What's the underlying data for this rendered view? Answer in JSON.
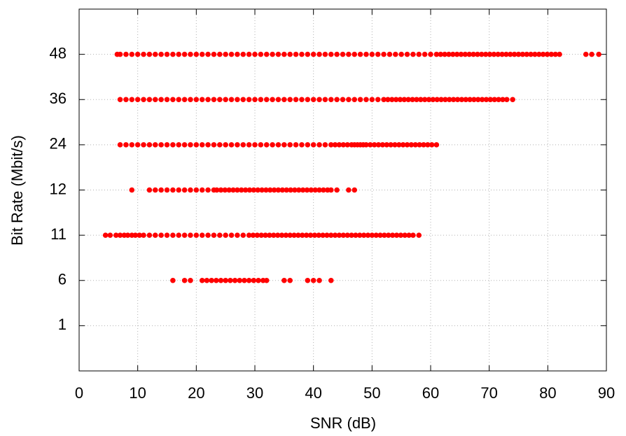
{
  "chart_data": {
    "type": "scatter",
    "x_label": "SNR (dB)",
    "y_label": "Bit Rate (Mbit/s)",
    "xlim": [
      0,
      90
    ],
    "xticks": [
      0,
      10,
      20,
      30,
      40,
      50,
      60,
      70,
      80,
      90
    ],
    "yticks": [
      1,
      6,
      11,
      12,
      24,
      36,
      48
    ],
    "grid": true,
    "color": "#ff0000",
    "series": [
      {
        "y": 48,
        "x": [
          6.5,
          7,
          8,
          9,
          10,
          11,
          12,
          13,
          14,
          15,
          16,
          17,
          18,
          19,
          20,
          21,
          22,
          23,
          24,
          25,
          26,
          27,
          28,
          29,
          30,
          31,
          32,
          33,
          34,
          35,
          36,
          37,
          38,
          39,
          40,
          41,
          42,
          43,
          44,
          45,
          46,
          47,
          48,
          49,
          50,
          51,
          52,
          53,
          54,
          55,
          56,
          57,
          58,
          59,
          60,
          61,
          61.7,
          62.4,
          63.1,
          63.8,
          64.5,
          65.2,
          65.9,
          66.6,
          67.3,
          68,
          68.7,
          69.4,
          70.1,
          70.8,
          71.5,
          72.2,
          72.9,
          73.6,
          74.3,
          75,
          75.7,
          76.4,
          77.1,
          77.8,
          78.5,
          79.2,
          79.9,
          80.6,
          81.3,
          82,
          86.5,
          87.5,
          88.7
        ]
      },
      {
        "y": 36,
        "x": [
          7,
          8,
          9,
          10,
          11,
          12,
          13,
          14,
          15,
          16,
          17,
          18,
          19,
          20,
          21,
          22,
          23,
          24,
          25,
          26,
          27,
          28,
          29,
          30,
          31,
          32,
          33,
          34,
          35,
          36,
          37,
          38,
          39,
          40,
          41,
          42,
          43,
          44,
          45,
          46,
          47,
          48,
          49,
          50,
          51,
          52,
          52.7,
          53.4,
          54.1,
          54.8,
          55.5,
          56.2,
          56.9,
          57.6,
          58.3,
          59,
          59.7,
          60.4,
          61.1,
          61.8,
          62.5,
          63.2,
          63.9,
          64.6,
          65.3,
          66,
          66.7,
          67.4,
          68.1,
          68.8,
          69.5,
          70.2,
          70.9,
          71.6,
          72.3,
          73,
          74
        ]
      },
      {
        "y": 24,
        "x": [
          7,
          8,
          9,
          10,
          11,
          12,
          13,
          14,
          15,
          16,
          17,
          18,
          19,
          20,
          21,
          22,
          23,
          24,
          25,
          26,
          27,
          28,
          29,
          30,
          31,
          32,
          33,
          34,
          35,
          36,
          37,
          38,
          39,
          40,
          41,
          42,
          43,
          43.7,
          44.4,
          45.1,
          45.8,
          46.5,
          47,
          47.5,
          48,
          48.5,
          49,
          49.7,
          50.4,
          51.1,
          51.8,
          52.5,
          53.2,
          53.9,
          54.6,
          55.3,
          56,
          56.7,
          57.4,
          58.1,
          58.8,
          59.5,
          60.2,
          61
        ]
      },
      {
        "y": 12,
        "x": [
          9,
          12,
          13,
          14,
          15,
          16,
          17,
          18,
          19,
          20,
          21,
          22,
          23,
          23.5,
          24.2,
          24.9,
          25.6,
          26.3,
          27,
          27.7,
          28.4,
          29.1,
          29.8,
          30.5,
          31.2,
          31.9,
          32.6,
          33.3,
          34,
          34.7,
          35.4,
          36.1,
          36.8,
          37.5,
          38.2,
          38.9,
          39.6,
          40.3,
          41,
          41.7,
          42.4,
          43,
          44,
          46,
          47
        ]
      },
      {
        "y": 11,
        "x": [
          4.5,
          5.3,
          6.3,
          7,
          7.7,
          8.3,
          9,
          9.6,
          10.3,
          11,
          12,
          13,
          14,
          15,
          16,
          17,
          18,
          19,
          20,
          21,
          22,
          23,
          24,
          25,
          26,
          27,
          28,
          29,
          29.7,
          30.4,
          31.1,
          31.8,
          32.5,
          33.2,
          33.9,
          34.6,
          35.3,
          36,
          36.7,
          37.4,
          38.1,
          38.8,
          39.5,
          40.2,
          40.9,
          41.6,
          42.3,
          43,
          43.7,
          44.4,
          45.1,
          45.8,
          46.5,
          47.2,
          47.9,
          48.6,
          49.3,
          50,
          50.7,
          51.4,
          52.1,
          52.8,
          53.5,
          54.2,
          54.9,
          55.6,
          56.3,
          57,
          58
        ]
      },
      {
        "y": 6,
        "x": [
          16,
          18,
          19,
          21,
          21.8,
          22.6,
          23.4,
          24.2,
          25,
          25.8,
          26.6,
          27.4,
          28.2,
          29,
          29.8,
          30.6,
          31.4,
          32,
          35,
          36,
          39,
          40,
          41,
          43
        ]
      }
    ]
  }
}
